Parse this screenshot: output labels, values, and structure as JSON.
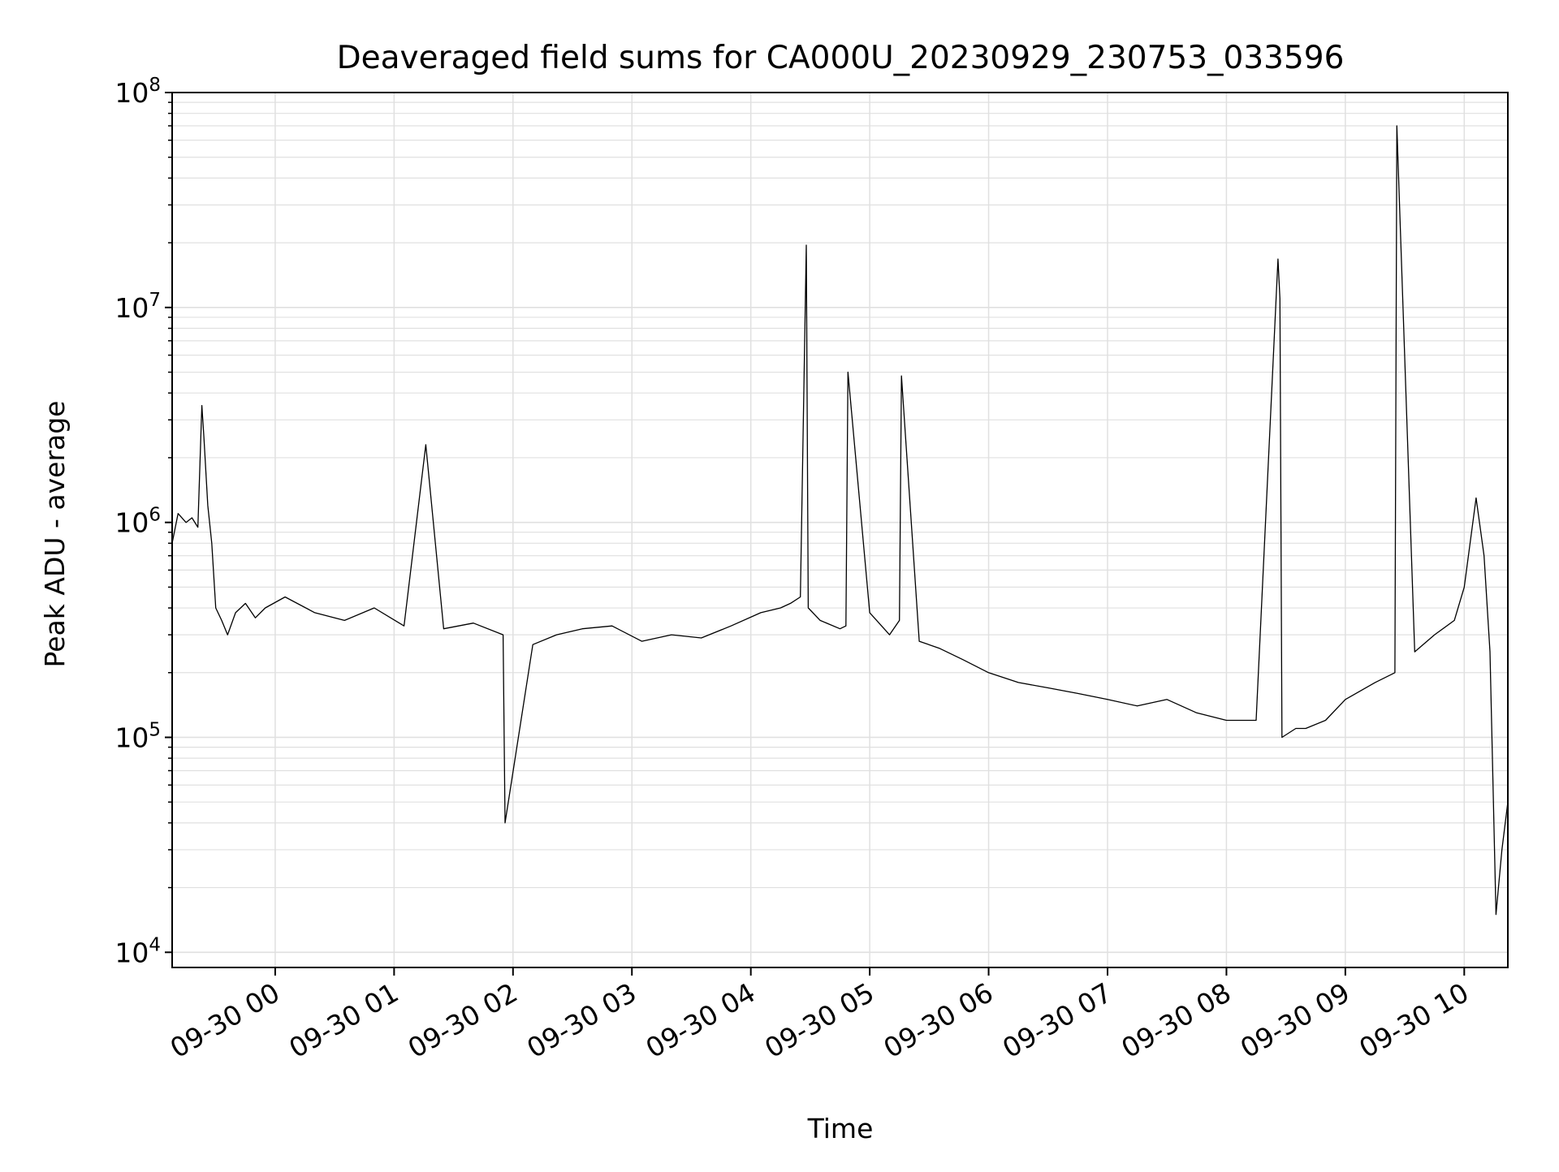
{
  "chart_data": {
    "type": "line",
    "title": "Deaveraged field sums for CA000U_20230929_230753_033596",
    "xlabel": "Time",
    "ylabel": "Peak ADU - average",
    "y_scale": "log",
    "ylim": [
      8500,
      100000000
    ],
    "xlim": [
      "2023-09-29 23:08",
      "2023-09-30 10:22"
    ],
    "grid": true,
    "legend": "none",
    "line_color": "#000000",
    "grid_color": "#e0e0e0",
    "x_ticks": [
      {
        "t": "2023-09-30 00:00",
        "label": "09-30 00"
      },
      {
        "t": "2023-09-30 01:00",
        "label": "09-30 01"
      },
      {
        "t": "2023-09-30 02:00",
        "label": "09-30 02"
      },
      {
        "t": "2023-09-30 03:00",
        "label": "09-30 03"
      },
      {
        "t": "2023-09-30 04:00",
        "label": "09-30 04"
      },
      {
        "t": "2023-09-30 05:00",
        "label": "09-30 05"
      },
      {
        "t": "2023-09-30 06:00",
        "label": "09-30 06"
      },
      {
        "t": "2023-09-30 07:00",
        "label": "09-30 07"
      },
      {
        "t": "2023-09-30 08:00",
        "label": "09-30 08"
      },
      {
        "t": "2023-09-30 09:00",
        "label": "09-30 09"
      },
      {
        "t": "2023-09-30 10:00",
        "label": "09-30 10"
      }
    ],
    "y_ticks": [
      {
        "value": 10000,
        "base": "10",
        "exp": "4"
      },
      {
        "value": 100000,
        "base": "10",
        "exp": "5"
      },
      {
        "value": 1000000,
        "base": "10",
        "exp": "6"
      },
      {
        "value": 10000000,
        "base": "10",
        "exp": "7"
      },
      {
        "value": 100000000,
        "base": "10",
        "exp": "8"
      }
    ],
    "series": [
      {
        "x": [
          "2023-09-29 23:08",
          "2023-09-29 23:11",
          "2023-09-29 23:15",
          "2023-09-29 23:18",
          "2023-09-29 23:21",
          "2023-09-29 23:23",
          "2023-09-29 23:24",
          "2023-09-29 23:26",
          "2023-09-29 23:28",
          "2023-09-29 23:30",
          "2023-09-29 23:33",
          "2023-09-29 23:36",
          "2023-09-29 23:40",
          "2023-09-29 23:45",
          "2023-09-29 23:50",
          "2023-09-29 23:55",
          "2023-09-30 00:05",
          "2023-09-30 00:20",
          "2023-09-30 00:35",
          "2023-09-30 00:50",
          "2023-09-30 01:05",
          "2023-09-30 01:16",
          "2023-09-30 01:25",
          "2023-09-30 01:40",
          "2023-09-30 01:55",
          "2023-09-30 01:56",
          "2023-09-30 02:10",
          "2023-09-30 02:22",
          "2023-09-30 02:35",
          "2023-09-30 02:50",
          "2023-09-30 03:05",
          "2023-09-30 03:20",
          "2023-09-30 03:35",
          "2023-09-30 03:50",
          "2023-09-30 04:05",
          "2023-09-30 04:15",
          "2023-09-30 04:20",
          "2023-09-30 04:25",
          "2023-09-30 04:28",
          "2023-09-30 04:29",
          "2023-09-30 04:35",
          "2023-09-30 04:45",
          "2023-09-30 04:48",
          "2023-09-30 04:49",
          "2023-09-30 05:00",
          "2023-09-30 05:10",
          "2023-09-30 05:15",
          "2023-09-30 05:16",
          "2023-09-30 05:25",
          "2023-09-30 05:35",
          "2023-09-30 05:47",
          "2023-09-30 06:00",
          "2023-09-30 06:15",
          "2023-09-30 06:30",
          "2023-09-30 06:45",
          "2023-09-30 07:00",
          "2023-09-30 07:15",
          "2023-09-30 07:30",
          "2023-09-30 07:45",
          "2023-09-30 08:00",
          "2023-09-30 08:15",
          "2023-09-30 08:26",
          "2023-09-30 08:27",
          "2023-09-30 08:28",
          "2023-09-30 08:35",
          "2023-09-30 08:40",
          "2023-09-30 08:50",
          "2023-09-30 09:00",
          "2023-09-30 09:15",
          "2023-09-30 09:25",
          "2023-09-30 09:26",
          "2023-09-30 09:35",
          "2023-09-30 09:45",
          "2023-09-30 09:55",
          "2023-09-30 10:00",
          "2023-09-30 10:06",
          "2023-09-30 10:10",
          "2023-09-30 10:13",
          "2023-09-30 10:16",
          "2023-09-30 10:19",
          "2023-09-30 10:22"
        ],
        "y": [
          800000,
          1100000,
          1000000,
          1050000,
          950000,
          3500000,
          2500000,
          1200000,
          800000,
          400000,
          350000,
          300000,
          380000,
          420000,
          360000,
          400000,
          450000,
          380000,
          350000,
          400000,
          330000,
          2300000,
          320000,
          340000,
          300000,
          40000,
          270000,
          300000,
          320000,
          330000,
          280000,
          300000,
          290000,
          330000,
          380000,
          400000,
          420000,
          450000,
          19500000,
          400000,
          350000,
          320000,
          330000,
          5000000,
          380000,
          300000,
          350000,
          4800000,
          280000,
          260000,
          230000,
          200000,
          180000,
          170000,
          160000,
          150000,
          140000,
          150000,
          130000,
          120000,
          120000,
          16800000,
          11000000,
          100000,
          110000,
          110000,
          120000,
          150000,
          180000,
          200000,
          70000000,
          250000,
          300000,
          350000,
          500000,
          1300000,
          700000,
          250000,
          15000,
          30000,
          50000
        ]
      }
    ]
  }
}
